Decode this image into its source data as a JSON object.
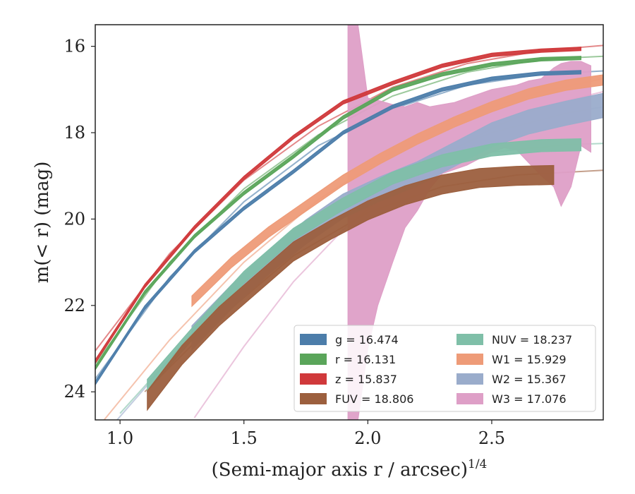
{
  "chart_data": {
    "type": "line",
    "xlabel": "(Semi-major axis r / arcsec)",
    "xlabel_superscript": "1/4",
    "ylabel": "m(< r) (mag)",
    "xlim": [
      0.9,
      2.95
    ],
    "ylim": [
      24.65,
      15.5
    ],
    "y_inverted": true,
    "grid": false,
    "legend_position": "lower-right",
    "x_ticks": [
      1.0,
      1.5,
      2.0,
      2.5
    ],
    "x_tick_labels": [
      "1.0",
      "1.5",
      "2.0",
      "2.5"
    ],
    "y_ticks": [
      16,
      18,
      20,
      22,
      24
    ],
    "y_tick_labels": [
      "16",
      "18",
      "20",
      "22",
      "24"
    ],
    "series": [
      {
        "key": "g",
        "label": "g = 16.474",
        "color": "#4c7daa",
        "band_x": [
          0.9,
          1.1,
          1.3,
          1.5,
          1.7,
          1.9,
          2.1,
          2.3,
          2.5,
          2.7,
          2.86
        ],
        "band_y": [
          23.8,
          22.05,
          20.75,
          19.75,
          18.9,
          18.0,
          17.4,
          17.0,
          16.75,
          16.63,
          16.6
        ],
        "band_hw": 0.04,
        "model_x": [
          0.9,
          1.2,
          1.5,
          1.8,
          2.1,
          2.4,
          2.7,
          2.95
        ],
        "model_y": [
          23.7,
          21.35,
          19.6,
          18.3,
          17.45,
          16.9,
          16.65,
          16.57
        ]
      },
      {
        "key": "r",
        "label": "r = 16.131",
        "color": "#5aa55a",
        "band_x": [
          0.9,
          1.1,
          1.3,
          1.5,
          1.7,
          1.9,
          2.1,
          2.3,
          2.5,
          2.7,
          2.86
        ],
        "band_y": [
          23.45,
          21.7,
          20.4,
          19.4,
          18.55,
          17.65,
          17.0,
          16.65,
          16.42,
          16.3,
          16.27
        ],
        "band_hw": 0.04,
        "model_x": [
          0.9,
          1.2,
          1.5,
          1.8,
          2.1,
          2.4,
          2.7,
          2.95
        ],
        "model_y": [
          23.35,
          21.0,
          19.3,
          18.05,
          17.15,
          16.6,
          16.3,
          16.23
        ]
      },
      {
        "key": "z",
        "label": "z = 15.837",
        "color": "#d0393b",
        "band_x": [
          0.9,
          1.1,
          1.3,
          1.5,
          1.7,
          1.9,
          2.1,
          2.3,
          2.5,
          2.7,
          2.86
        ],
        "band_y": [
          23.3,
          21.55,
          20.2,
          19.05,
          18.1,
          17.3,
          16.85,
          16.45,
          16.2,
          16.1,
          16.06
        ],
        "band_hw": 0.04,
        "model_x": [
          0.9,
          1.2,
          1.5,
          1.8,
          2.1,
          2.4,
          2.7,
          2.95
        ],
        "model_y": [
          23.05,
          20.8,
          19.1,
          17.85,
          16.95,
          16.4,
          16.1,
          15.98
        ]
      },
      {
        "key": "FUV",
        "label": "FUV = 18.806",
        "color": "#9c5f3e",
        "band_x": [
          1.11,
          1.25,
          1.4,
          1.55,
          1.7,
          1.85,
          2.0,
          2.15,
          2.3,
          2.45,
          2.6,
          2.75
        ],
        "band_y": [
          24.2,
          23.15,
          22.25,
          21.5,
          20.75,
          20.25,
          19.8,
          19.45,
          19.2,
          19.05,
          19.0,
          18.98
        ],
        "band_hw": 0.22,
        "model_x": [
          1.1,
          1.4,
          1.7,
          2.0,
          2.3,
          2.6,
          2.95
        ],
        "model_y": [
          24.0,
          22.3,
          20.85,
          19.85,
          19.25,
          18.98,
          18.87
        ]
      },
      {
        "key": "NUV",
        "label": "NUV = 18.237",
        "color": "#7fbfa8",
        "band_x": [
          1.11,
          1.3,
          1.5,
          1.7,
          1.9,
          2.1,
          2.3,
          2.5,
          2.7,
          2.86
        ],
        "band_y": [
          23.85,
          22.6,
          21.35,
          20.35,
          19.65,
          19.05,
          18.65,
          18.4,
          18.3,
          18.28
        ],
        "band_hw": 0.14,
        "model_x": [
          1.0,
          1.3,
          1.6,
          1.9,
          2.2,
          2.5,
          2.8,
          2.95
        ],
        "model_y": [
          24.5,
          22.6,
          21.0,
          19.7,
          18.9,
          18.45,
          18.28,
          18.25
        ]
      },
      {
        "key": "W1",
        "label": "W1 = 15.929",
        "color": "#ee9b78",
        "band_x": [
          1.29,
          1.45,
          1.6,
          1.75,
          1.9,
          2.05,
          2.2,
          2.35,
          2.5,
          2.65,
          2.8,
          2.95
        ],
        "band_y": [
          21.9,
          21.0,
          20.3,
          19.7,
          19.1,
          18.6,
          18.15,
          17.75,
          17.4,
          17.1,
          16.9,
          16.78
        ],
        "band_hw": 0.12,
        "model_x": [
          0.9,
          1.2,
          1.5,
          1.8,
          2.1,
          2.4,
          2.7,
          2.95
        ],
        "model_y": [
          24.9,
          22.8,
          21.0,
          19.55,
          18.45,
          17.6,
          17.05,
          16.75
        ]
      },
      {
        "key": "W2",
        "label": "W2 = 15.367",
        "color": "#9aaccb",
        "band_x": [
          1.29,
          1.45,
          1.6,
          1.75,
          1.9,
          2.05,
          2.2,
          2.35,
          2.5,
          2.65,
          2.8,
          2.95
        ],
        "band_y": [
          22.75,
          21.8,
          21.0,
          20.3,
          19.7,
          19.3,
          18.95,
          18.5,
          18.05,
          17.75,
          17.55,
          17.37
        ],
        "band_hw": 0.28,
        "model_x": [
          0.95,
          1.3,
          1.6,
          1.9,
          2.2,
          2.5,
          2.8,
          2.95
        ],
        "model_y": [
          24.9,
          22.6,
          20.95,
          19.65,
          18.7,
          18.0,
          17.55,
          17.4
        ]
      },
      {
        "key": "W3",
        "label": "W3 = 17.076",
        "color": "#de9fc7",
        "band_x": [
          1.92,
          1.92,
          1.96,
          2.0,
          2.04,
          2.1,
          2.15,
          2.2,
          2.25,
          2.3,
          2.35,
          2.4,
          2.45,
          2.5,
          2.55,
          2.6,
          2.65,
          2.7,
          2.75,
          2.78,
          2.82,
          2.86,
          2.9
        ],
        "band_lo": [
          15.5,
          15.5,
          15.5,
          17.2,
          17.25,
          17.35,
          17.4,
          17.3,
          17.4,
          17.35,
          17.3,
          17.2,
          17.1,
          17.0,
          16.95,
          16.9,
          16.8,
          16.75,
          16.5,
          16.4,
          16.35,
          16.35,
          16.45
        ],
        "band_hi": [
          24.65,
          24.65,
          24.65,
          23.0,
          22.0,
          21.0,
          20.2,
          19.8,
          19.3,
          18.95,
          18.85,
          18.75,
          18.6,
          18.45,
          18.35,
          18.4,
          18.7,
          19.0,
          19.25,
          19.7,
          19.25,
          18.3,
          18.45
        ],
        "model_x": [
          1.3,
          1.5,
          1.7,
          1.9,
          2.1,
          2.3,
          2.5,
          2.7,
          2.95
        ],
        "model_y": [
          24.6,
          22.95,
          21.45,
          20.25,
          19.3,
          18.55,
          17.9,
          17.4,
          17.05
        ]
      }
    ],
    "legend_columns": [
      [
        "g",
        "r",
        "z",
        "FUV"
      ],
      [
        "NUV",
        "W1",
        "W2",
        "W3"
      ]
    ]
  }
}
